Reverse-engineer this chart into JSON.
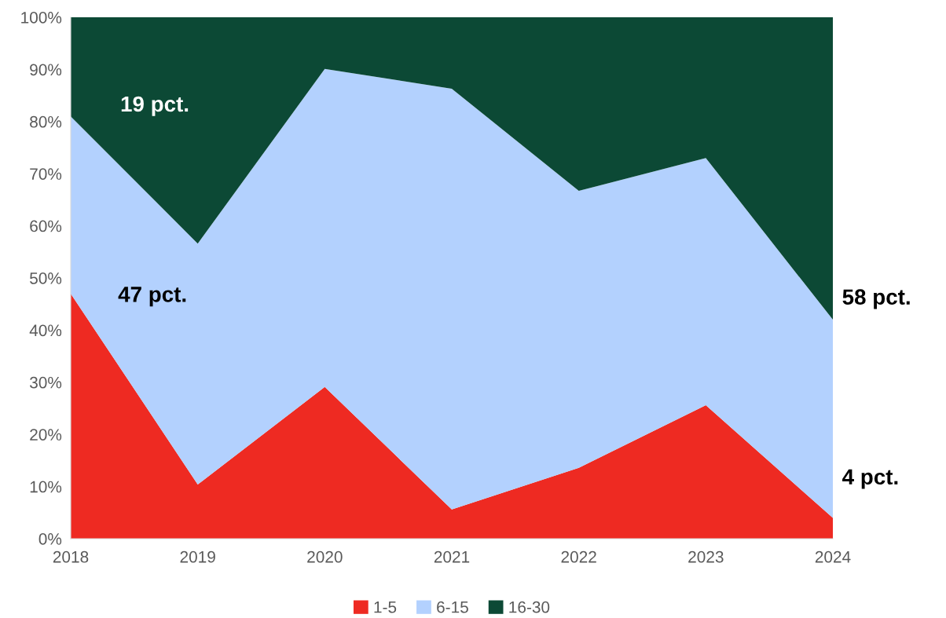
{
  "chart_data": {
    "type": "area",
    "stacked": true,
    "x": [
      2018,
      2019,
      2020,
      2021,
      2022,
      2023,
      2024
    ],
    "series": [
      {
        "name": "1-5",
        "color": "#ee2a22",
        "values": [
          47,
          10.4,
          29.1,
          5.6,
          13.6,
          25.6,
          4
        ]
      },
      {
        "name": "6-15",
        "color": "#b3d1fe",
        "values": [
          34,
          46.2,
          61.0,
          80.7,
          53.1,
          47.4,
          38
        ]
      },
      {
        "name": "16-30",
        "color": "#0c4935",
        "values": [
          19,
          43.4,
          9.9,
          13.7,
          33.3,
          27.0,
          58
        ]
      }
    ],
    "xlim": [
      2018,
      2024
    ],
    "xticks": [
      2018,
      2019,
      2020,
      2021,
      2022,
      2023,
      2024
    ],
    "ylim": [
      0,
      100
    ],
    "yticks": [
      {
        "value": 0,
        "label": "0%"
      },
      {
        "value": 10,
        "label": "10%"
      },
      {
        "value": 20,
        "label": "20%"
      },
      {
        "value": 30,
        "label": "30%"
      },
      {
        "value": 40,
        "label": "40%"
      },
      {
        "value": 50,
        "label": "50%"
      },
      {
        "value": 60,
        "label": "60%"
      },
      {
        "value": 70,
        "label": "70%"
      },
      {
        "value": 80,
        "label": "80%"
      },
      {
        "value": 90,
        "label": "90%"
      },
      {
        "value": 100,
        "label": "100%"
      }
    ],
    "annotations": [
      "19 pct.",
      "47 pct.",
      "58 pct.",
      "4 pct."
    ],
    "legend": "bottom",
    "grid": false
  }
}
